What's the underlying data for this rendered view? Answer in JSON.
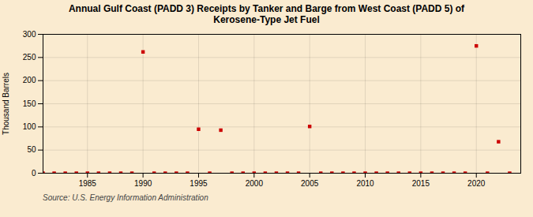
{
  "chart_data": {
    "type": "scatter",
    "title": "Annual Gulf Coast (PADD 3) Receipts by Tanker and Barge from West Coast (PADD 5) of\nKerosene-Type Jet Fuel",
    "ylabel": "Thousand Barrels",
    "annotations": [
      "Source: U.S. Energy Information Administration"
    ],
    "x": [
      1981,
      1982,
      1983,
      1984,
      1985,
      1986,
      1987,
      1988,
      1989,
      1990,
      1991,
      1992,
      1993,
      1994,
      1995,
      1996,
      1997,
      1998,
      1999,
      2000,
      2001,
      2002,
      2003,
      2004,
      2005,
      2006,
      2007,
      2008,
      2009,
      2010,
      2011,
      2012,
      2013,
      2014,
      2015,
      2016,
      2017,
      2018,
      2019,
      2020,
      2021,
      2022,
      2023
    ],
    "values": [
      0,
      0,
      0,
      0,
      0,
      0,
      0,
      0,
      0,
      262,
      0,
      0,
      0,
      0,
      95,
      0,
      93,
      0,
      0,
      0,
      0,
      0,
      0,
      0,
      101,
      0,
      0,
      0,
      0,
      0,
      0,
      0,
      0,
      0,
      0,
      0,
      0,
      0,
      0,
      275,
      0,
      68,
      0
    ],
    "color": "#cc0000",
    "marker": "square",
    "xlim": [
      1981,
      2024
    ],
    "ylim": [
      0,
      300
    ],
    "xticks": [
      1985,
      1990,
      1995,
      2000,
      2005,
      2010,
      2015,
      2020
    ],
    "yticks": [
      0,
      50,
      100,
      150,
      200,
      250,
      300
    ],
    "grid": true
  }
}
